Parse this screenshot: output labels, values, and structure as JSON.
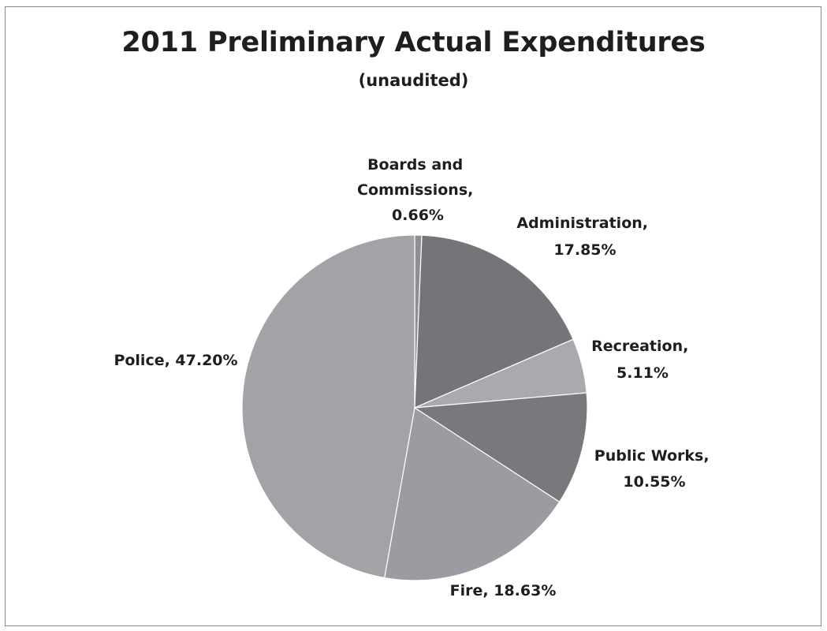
{
  "chart_data": {
    "type": "pie",
    "title": "2011 Preliminary Actual Expenditures",
    "subtitle": "(unaudited)",
    "slices": [
      {
        "label": "Boards and Commissions",
        "value": 0.66,
        "value_label": "0.66%",
        "color": "#8e8f94"
      },
      {
        "label": "Administration",
        "value": 17.85,
        "value_label": "17.85%",
        "color": "#747579"
      },
      {
        "label": "Recreation",
        "value": 5.11,
        "value_label": "5.11%",
        "color": "#a9aaae"
      },
      {
        "label": "Public Works",
        "value": 10.55,
        "value_label": "10.55%",
        "color": "#78797d"
      },
      {
        "label": "Fire",
        "value": 18.63,
        "value_label": "18.63%",
        "color": "#9b9ca1"
      },
      {
        "label": "Police",
        "value": 47.2,
        "value_label": "47.20%",
        "color": "#a2a3a7"
      }
    ],
    "start_angle": "12 o'clock",
    "direction": "clockwise",
    "legend": "none"
  }
}
